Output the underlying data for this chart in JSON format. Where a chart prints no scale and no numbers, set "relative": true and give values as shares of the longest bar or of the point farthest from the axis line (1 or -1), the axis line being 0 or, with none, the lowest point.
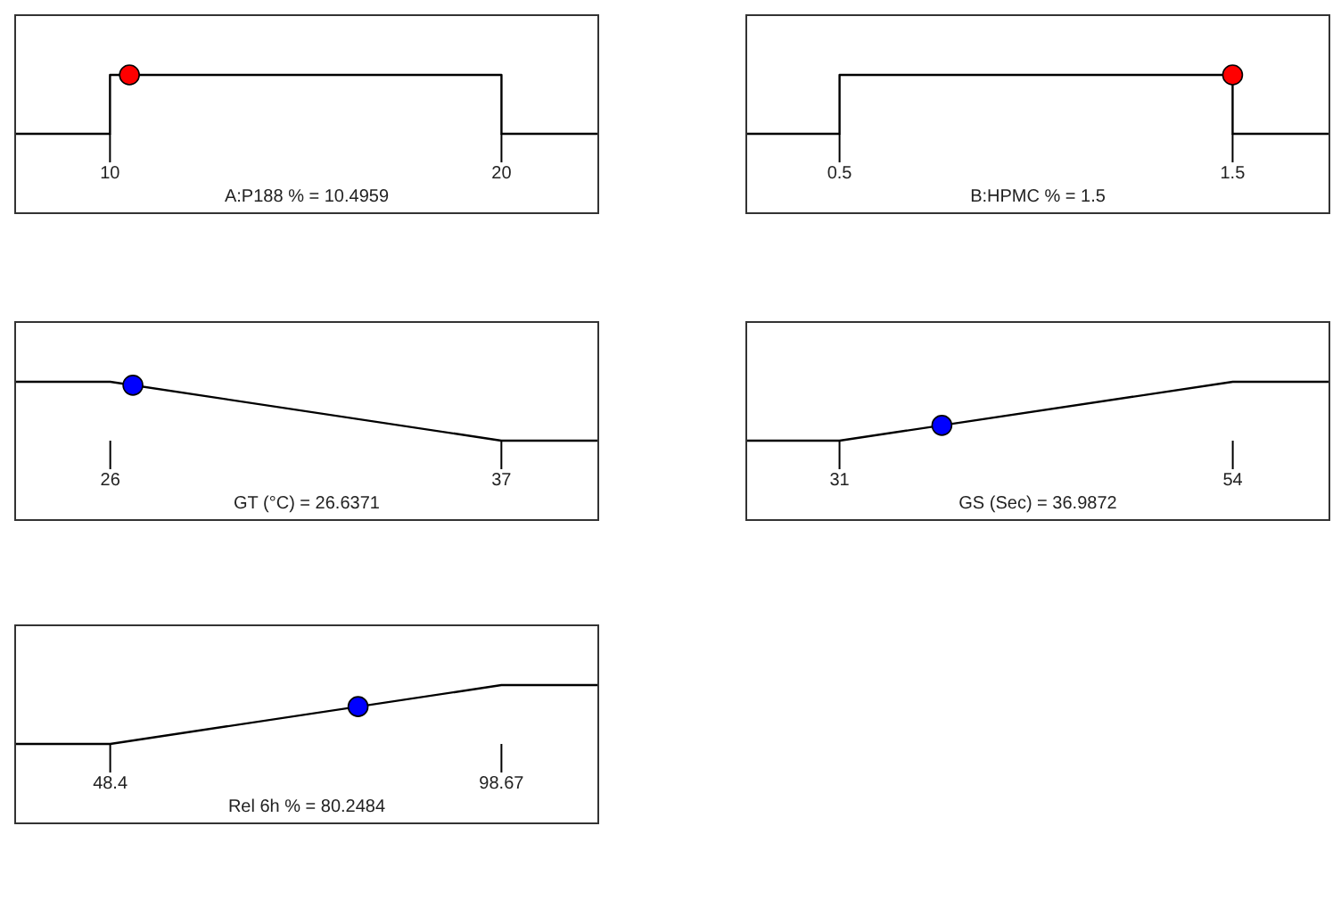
{
  "chart_data": [
    {
      "type": "line",
      "relative": true,
      "xlabel": "A:P188 % = 10.4959",
      "xlim": [
        7.6,
        22.45
      ],
      "xticks": [
        10,
        20
      ],
      "series": [
        {
          "type": "line",
          "color": "#000000",
          "x": [
            7.6,
            10,
            10,
            20,
            20,
            22.45
          ],
          "values": [
            0,
            0,
            1,
            1,
            0,
            0
          ]
        },
        {
          "type": "scatter",
          "color": "#ff0000",
          "marker": "circle",
          "x": [
            10.4959
          ],
          "values": [
            1
          ]
        }
      ]
    },
    {
      "type": "line",
      "relative": true,
      "xlabel": "B:HPMC % = 1.5",
      "xlim": [
        0.265,
        1.744
      ],
      "xticks": [
        0.5,
        1.5
      ],
      "series": [
        {
          "type": "line",
          "color": "#000000",
          "x": [
            0.265,
            0.5,
            0.5,
            1.5,
            1.5,
            1.744
          ],
          "values": [
            0,
            0,
            1,
            1,
            0,
            0
          ]
        },
        {
          "type": "scatter",
          "color": "#ff0000",
          "marker": "circle",
          "x": [
            1.5
          ],
          "values": [
            1
          ]
        }
      ]
    },
    {
      "type": "line",
      "relative": true,
      "xlabel": "GT (°C) = 26.6371",
      "xlim": [
        23.35,
        39.7
      ],
      "xticks": [
        26,
        37
      ],
      "series": [
        {
          "type": "line",
          "color": "#000000",
          "x": [
            23.35,
            26,
            37,
            39.7
          ],
          "values": [
            1,
            1,
            0,
            0
          ]
        },
        {
          "type": "scatter",
          "color": "#0000ff",
          "marker": "circle",
          "x": [
            26.6371
          ],
          "values": [
            0.942
          ]
        }
      ]
    },
    {
      "type": "line",
      "relative": true,
      "xlabel": "GS (Sec) = 36.9872",
      "xlim": [
        25.6,
        59.6
      ],
      "xticks": [
        31,
        54
      ],
      "series": [
        {
          "type": "line",
          "color": "#000000",
          "x": [
            25.6,
            31,
            54,
            59.6
          ],
          "values": [
            0,
            0,
            1,
            1
          ]
        },
        {
          "type": "scatter",
          "color": "#0000ff",
          "marker": "circle",
          "x": [
            36.9872
          ],
          "values": [
            0.26
          ]
        }
      ]
    },
    {
      "type": "line",
      "relative": true,
      "xlabel": "Rel 6h % = 80.2484",
      "xlim": [
        36.3,
        111
      ],
      "xticks": [
        48.4,
        98.67
      ],
      "series": [
        {
          "type": "line",
          "color": "#000000",
          "x": [
            36.3,
            48.4,
            98.67,
            111
          ],
          "values": [
            0,
            0,
            1,
            1
          ]
        },
        {
          "type": "scatter",
          "color": "#0000ff",
          "marker": "circle",
          "x": [
            80.2484
          ],
          "values": [
            0.634
          ]
        }
      ]
    }
  ]
}
